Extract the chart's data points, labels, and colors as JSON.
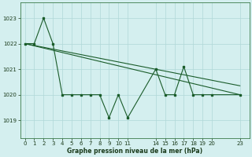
{
  "bg_color": "#d4efef",
  "line_color": "#1a5c2a",
  "grid_color": "#b0d8d8",
  "xlabel": "Graphe pression niveau de la mer (hPa)",
  "ylim": [
    1018.3,
    1023.6
  ],
  "xlim": [
    -0.5,
    24.0
  ],
  "yticks": [
    1019,
    1020,
    1021,
    1022,
    1023
  ],
  "xticks": [
    0,
    1,
    2,
    3,
    4,
    5,
    6,
    7,
    8,
    9,
    10,
    11,
    14,
    15,
    16,
    17,
    18,
    19,
    20,
    23
  ],
  "series": [
    {
      "x": [
        0,
        1,
        2,
        3,
        4,
        5,
        6,
        7,
        8,
        9,
        10,
        11,
        14,
        15,
        16,
        17,
        18,
        19,
        20,
        23
      ],
      "y": [
        1022.0,
        1022.0,
        1023.0,
        1022.0,
        1020.0,
        1020.0,
        1020.0,
        1020.0,
        1020.0,
        1019.1,
        1020.0,
        1019.1,
        1021.0,
        1020.0,
        1020.0,
        1021.1,
        1020.0,
        1020.0,
        1020.0,
        1020.0
      ]
    },
    {
      "x": [
        0,
        23
      ],
      "y": [
        1022.0,
        1020.35
      ]
    },
    {
      "x": [
        0,
        23
      ],
      "y": [
        1022.0,
        1020.0
      ]
    }
  ]
}
